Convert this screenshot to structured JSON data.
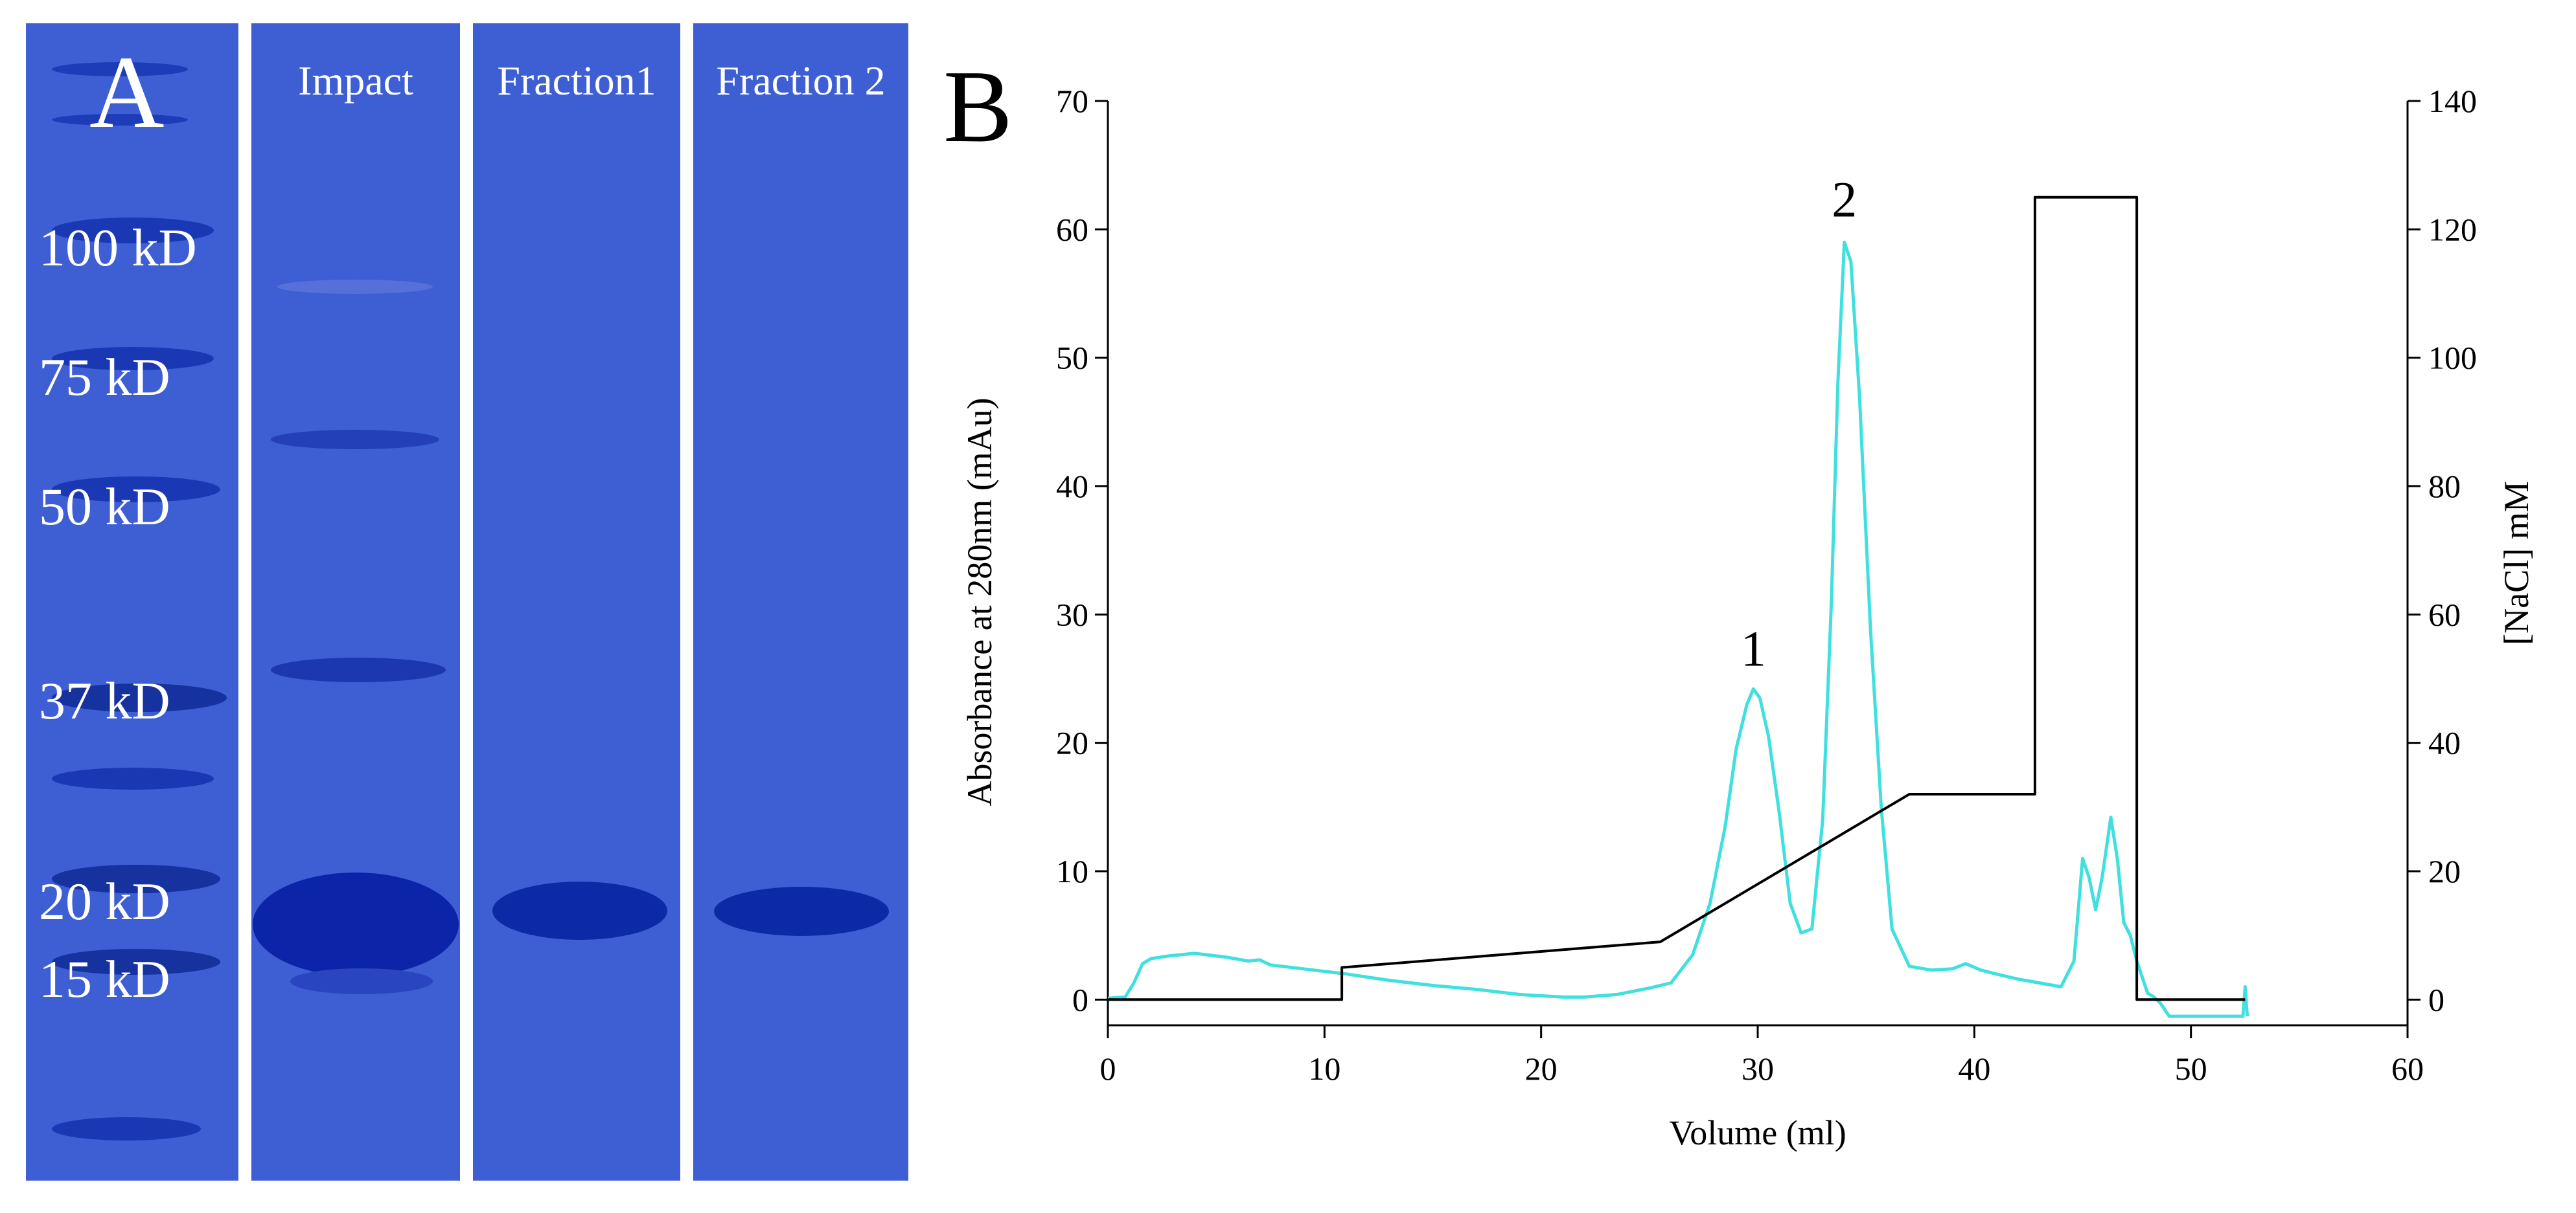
{
  "gel": {
    "panel_letter": "A",
    "lanes": [
      {
        "label": ""
      },
      {
        "label": "Impact"
      },
      {
        "label": "Fraction1"
      },
      {
        "label": "Fraction 2"
      }
    ],
    "marker_labels": [
      "100 kD",
      "75 kD",
      "50 kD",
      "37 kD",
      "20 kD",
      "15 kD"
    ],
    "colors": {
      "gel": "#3e5fd4",
      "band": "#0d2aa6"
    }
  },
  "chart_data": {
    "type": "line",
    "panel_letter": "B",
    "xlabel": "Volume (ml)",
    "ylabel": "Absorbance at 280nm (mAu)",
    "y2label": "[NaCl] mM",
    "xlim": [
      0,
      60
    ],
    "ylim": [
      -2,
      70
    ],
    "y2lim": [
      -4,
      140
    ],
    "x_ticks": [
      "0",
      "10",
      "20",
      "30",
      "40",
      "50",
      "60"
    ],
    "y_ticks": [
      "0",
      "10",
      "20",
      "30",
      "40",
      "50",
      "60",
      "70"
    ],
    "y2_ticks": [
      "0",
      "20",
      "40",
      "60",
      "80",
      "100",
      "120",
      "140"
    ],
    "annotations": [
      {
        "text": "1",
        "x": 29.8,
        "y": 26
      },
      {
        "text": "2",
        "x": 34.0,
        "y": 61
      }
    ],
    "series": [
      {
        "name": "Absorbance at 280nm",
        "axis": "left",
        "color": "#3fe0df",
        "x": [
          0,
          0.8,
          1.2,
          1.6,
          2.0,
          2.8,
          4.0,
          5.5,
          6.5,
          7.0,
          7.5,
          9,
          11,
          13,
          15,
          17,
          19,
          21,
          22,
          23.5,
          25,
          26,
          27,
          27.8,
          28.5,
          29.0,
          29.5,
          29.8,
          30.1,
          30.5,
          31.0,
          31.5,
          32.0,
          32.5,
          33.0,
          33.4,
          33.7,
          34.0,
          34.3,
          34.7,
          35.2,
          35.7,
          36.2,
          37.0,
          38,
          39,
          39.6,
          40.3,
          41,
          42,
          43,
          44,
          44.6,
          45.0,
          45.3,
          45.6,
          45.9,
          46.3,
          46.6,
          46.9,
          47.2,
          47.5,
          48.0,
          48.3,
          48.6,
          49,
          51,
          52.4,
          52.5,
          52.6
        ],
        "values": [
          0.1,
          0.2,
          1.3,
          2.8,
          3.2,
          3.4,
          3.6,
          3.3,
          3.0,
          3.1,
          2.7,
          2.4,
          2.0,
          1.5,
          1.1,
          0.8,
          0.4,
          0.2,
          0.2,
          0.4,
          0.9,
          1.3,
          3.5,
          7.5,
          13.5,
          19.5,
          23.0,
          24.2,
          23.5,
          20.5,
          14.5,
          7.5,
          5.2,
          5.5,
          14.0,
          31.0,
          48.0,
          59.0,
          57.5,
          47.0,
          29.0,
          15.0,
          5.5,
          2.6,
          2.3,
          2.4,
          2.8,
          2.3,
          2.0,
          1.6,
          1.3,
          1.0,
          3.0,
          11.0,
          9.5,
          7.0,
          9.5,
          14.2,
          11.0,
          6.0,
          5.0,
          3.0,
          0.5,
          0.2,
          -0.3,
          -1.3,
          -1.3,
          -1.3,
          1.0,
          -1.3
        ]
      },
      {
        "name": "[NaCl] mM",
        "axis": "right",
        "color": "#000000",
        "x": [
          0,
          10.8,
          10.8,
          25.5,
          37,
          42.8,
          42.8,
          47.5,
          47.5,
          52.5
        ],
        "values": [
          0,
          0,
          5,
          9,
          32,
          32,
          125,
          125,
          0,
          0
        ]
      }
    ]
  }
}
